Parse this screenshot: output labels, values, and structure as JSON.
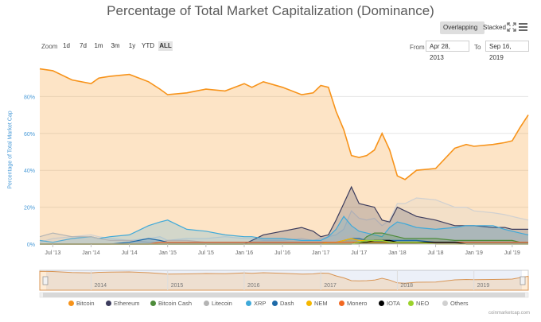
{
  "title": "Percentage of Total Market Capitalization (Dominance)",
  "view_buttons": {
    "overlapping": "Overlapping",
    "stacked": "Stacked"
  },
  "zoom": {
    "label": "Zoom",
    "options": [
      "1d",
      "7d",
      "1m",
      "3m",
      "1y",
      "YTD",
      "ALL"
    ],
    "selected": "ALL"
  },
  "range": {
    "from_label": "From",
    "from_value": "Apr 28, 2013",
    "to_label": "To",
    "to_value": "Sep 16, 2019"
  },
  "credit": "coinmarketcap.com",
  "icons": {
    "fullscreen": "fullscreen-icon",
    "menu": "hamburger-menu-icon"
  },
  "chart_data": {
    "type": "area",
    "title": "Percentage of Total Market Capitalization (Dominance)",
    "ylabel": "Percentage of Total Market Cap",
    "ylim": [
      0,
      100
    ],
    "y_ticks": [
      "0%",
      "20%",
      "40%",
      "60%",
      "80%"
    ],
    "x_ticks": [
      "Jul '13",
      "Jan '14",
      "Jul '14",
      "Jan '15",
      "Jul '15",
      "Jan '16",
      "Jul '16",
      "Jan '17",
      "Jul '17",
      "Jan '18",
      "Jul '18",
      "Jan '19",
      "Jul '19"
    ],
    "navigator_ticks": [
      "2014",
      "2015",
      "2016",
      "2017",
      "2018",
      "2019"
    ],
    "grid": true,
    "legend_position": "bottom",
    "x": [
      2013.33,
      2013.5,
      2013.75,
      2014.0,
      2014.1,
      2014.25,
      2014.5,
      2014.75,
      2014.9,
      2015.0,
      2015.25,
      2015.5,
      2015.75,
      2016.0,
      2016.1,
      2016.25,
      2016.5,
      2016.75,
      2016.9,
      2017.0,
      2017.1,
      2017.2,
      2017.3,
      2017.4,
      2017.5,
      2017.6,
      2017.7,
      2017.8,
      2017.9,
      2018.0,
      2018.1,
      2018.25,
      2018.5,
      2018.75,
      2018.9,
      2019.0,
      2019.25,
      2019.4,
      2019.5,
      2019.6,
      2019.71
    ],
    "series": [
      {
        "name": "Bitcoin",
        "color": "#f7931a",
        "values": [
          95,
          94,
          89,
          87,
          90,
          91,
          92,
          88,
          84,
          81,
          82,
          84,
          83,
          87,
          85,
          88,
          85,
          81,
          82,
          86,
          85,
          72,
          62,
          48,
          47,
          48,
          51,
          60,
          51,
          37,
          35,
          40,
          41,
          52,
          54,
          53,
          54,
          55,
          56,
          63,
          70
        ]
      },
      {
        "name": "Ethereum",
        "color": "#3c3c5d",
        "values": [
          0,
          0,
          0,
          0,
          0,
          0,
          0,
          0,
          0,
          0,
          0,
          0,
          0,
          0,
          2,
          5,
          7,
          9,
          7,
          4,
          5,
          13,
          22,
          31,
          22,
          21,
          20,
          13,
          12,
          20,
          18,
          15,
          13,
          10,
          10,
          10,
          9,
          9,
          8,
          8,
          8
        ]
      },
      {
        "name": "Bitcoin Cash",
        "color": "#4d8b3a",
        "values": [
          0,
          0,
          0,
          0,
          0,
          0,
          0,
          0,
          0,
          0,
          0,
          0,
          0,
          0,
          0,
          0,
          0,
          0,
          0,
          0,
          0,
          0,
          0,
          0,
          0,
          4,
          6,
          6,
          5,
          4,
          3,
          3,
          3,
          2,
          2,
          2,
          2,
          2,
          2,
          1,
          1
        ]
      },
      {
        "name": "Litecoin",
        "color": "#b4b4b4",
        "values": [
          4,
          6,
          4,
          4,
          3,
          2,
          2,
          1,
          1,
          2,
          2,
          1,
          1,
          1,
          1,
          1,
          1,
          1,
          1,
          1,
          1,
          2,
          4,
          5,
          3,
          3,
          3,
          2,
          2,
          2,
          2,
          2,
          2,
          2,
          2,
          2,
          2,
          2,
          3,
          3,
          2
        ]
      },
      {
        "name": "XRP",
        "color": "#3fa9d9",
        "values": [
          2,
          1,
          3,
          4,
          3,
          4,
          5,
          10,
          12,
          13,
          8,
          7,
          5,
          4,
          4,
          3,
          3,
          2,
          2,
          2,
          4,
          8,
          15,
          10,
          7,
          6,
          5,
          4,
          9,
          12,
          11,
          9,
          8,
          9,
          10,
          10,
          10,
          8,
          7,
          6,
          5
        ]
      },
      {
        "name": "Dash",
        "color": "#1e6aa8",
        "values": [
          0,
          0,
          0,
          0,
          0,
          0,
          1,
          3,
          2,
          1,
          1,
          1,
          1,
          1,
          1,
          1,
          1,
          1,
          1,
          1,
          1,
          1,
          2,
          3,
          3,
          2,
          2,
          2,
          2,
          2,
          2,
          2,
          1,
          1,
          1,
          1,
          1,
          1,
          1,
          1,
          1
        ]
      },
      {
        "name": "NEM",
        "color": "#f5b700",
        "values": [
          0,
          0,
          0,
          0,
          0,
          0,
          0,
          0,
          0,
          0,
          0,
          0,
          0,
          0,
          0,
          0,
          0,
          0,
          0,
          0,
          1,
          1,
          2,
          3,
          2,
          2,
          1,
          1,
          1,
          1,
          1,
          1,
          0,
          0,
          0,
          0,
          0,
          0,
          0,
          0,
          0
        ]
      },
      {
        "name": "Monero",
        "color": "#f26822",
        "values": [
          0,
          0,
          0,
          0,
          0,
          0,
          0,
          0,
          1,
          1,
          1,
          1,
          1,
          1,
          1,
          1,
          1,
          1,
          1,
          1,
          1,
          1,
          1,
          1,
          1,
          1,
          1,
          1,
          1,
          1,
          1,
          1,
          1,
          1,
          1,
          1,
          1,
          1,
          1,
          1,
          1
        ]
      },
      {
        "name": "IOTA",
        "color": "#000000",
        "values": [
          0,
          0,
          0,
          0,
          0,
          0,
          0,
          0,
          0,
          0,
          0,
          0,
          0,
          0,
          0,
          0,
          0,
          0,
          0,
          0,
          0,
          0,
          0,
          0,
          1,
          1,
          2,
          2,
          2,
          1,
          1,
          1,
          1,
          1,
          0,
          0,
          0,
          0,
          0,
          0,
          0
        ]
      },
      {
        "name": "NEO",
        "color": "#9bd22b",
        "values": [
          0,
          0,
          0,
          0,
          0,
          0,
          0,
          0,
          0,
          0,
          0,
          0,
          0,
          0,
          0,
          0,
          0,
          0,
          0,
          0,
          0,
          0,
          0,
          0,
          1,
          2,
          2,
          2,
          1,
          1,
          1,
          1,
          0,
          0,
          0,
          0,
          0,
          0,
          0,
          0,
          0
        ]
      },
      {
        "name": "Others",
        "color": "#d0d0d0",
        "values": [
          1,
          3,
          4,
          5,
          4,
          3,
          2,
          3,
          4,
          2,
          3,
          3,
          4,
          3,
          3,
          2,
          2,
          3,
          2,
          3,
          4,
          5,
          8,
          18,
          14,
          13,
          14,
          10,
          13,
          22,
          22,
          25,
          24,
          20,
          20,
          18,
          17,
          16,
          15,
          14,
          13
        ]
      }
    ]
  }
}
